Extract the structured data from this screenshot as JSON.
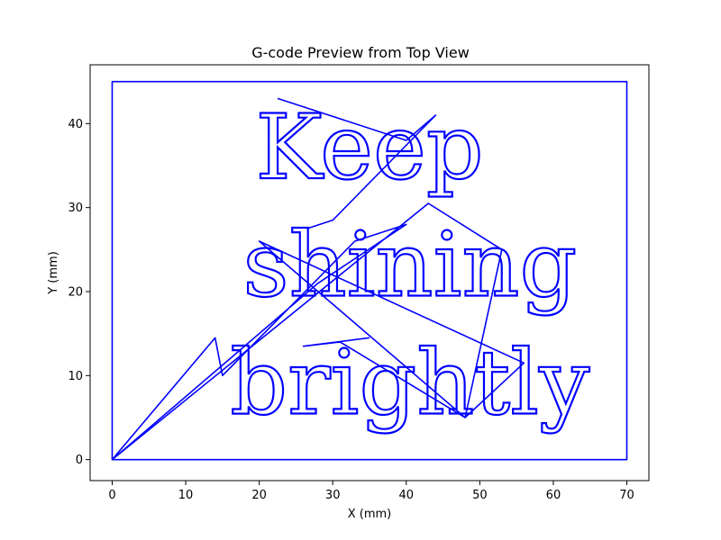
{
  "chart_data": {
    "type": "line",
    "title": "G-code Preview from Top View",
    "xlabel": "X (mm)",
    "ylabel": "Y (mm)",
    "xlim": [
      -3,
      73
    ],
    "ylim": [
      -2.5,
      47
    ],
    "xticks": [
      0,
      10,
      20,
      30,
      40,
      50,
      60,
      70
    ],
    "yticks": [
      0,
      10,
      20,
      30,
      40
    ],
    "grid": false,
    "line_color": "#0000ff",
    "series": [
      {
        "type": "border",
        "x": [
          0,
          70,
          70,
          0,
          0
        ],
        "y": [
          0,
          0,
          45,
          45,
          0
        ]
      },
      {
        "type": "travel",
        "x": [
          0,
          14,
          15,
          33,
          40,
          28,
          0,
          43,
          53,
          48,
          56,
          20,
          48,
          31,
          26,
          35
        ],
        "y": [
          0,
          14.5,
          10,
          26,
          28,
          21,
          0,
          30.5,
          25,
          5,
          11.5,
          26,
          5,
          14,
          13.5,
          14.5
        ]
      },
      {
        "type": "travel",
        "x": [
          22.5,
          40,
          44,
          30,
          26.5
        ],
        "y": [
          43,
          38,
          41,
          28.5,
          27.5
        ]
      }
    ],
    "engraved_lines": [
      {
        "text": "Keep",
        "x_center": 35,
        "y_baseline": 33.5
      },
      {
        "text": "shining",
        "x_center": 40.5,
        "y_baseline": 19.5
      },
      {
        "text": "brightly",
        "x_center": 40.5,
        "y_baseline": 5.5
      }
    ]
  }
}
